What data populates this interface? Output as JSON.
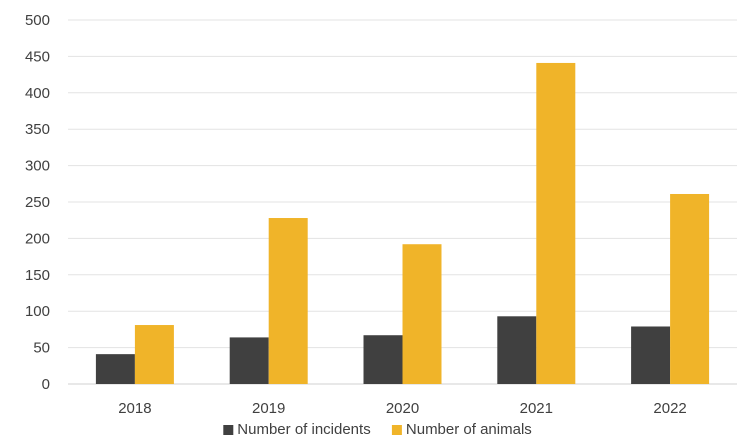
{
  "chart_data": {
    "type": "bar",
    "categories": [
      "2018",
      "2019",
      "2020",
      "2021",
      "2022"
    ],
    "series": [
      {
        "name": "Number of incidents",
        "values": [
          41,
          64,
          67,
          93,
          79
        ],
        "color": "#404040"
      },
      {
        "name": "Number of animals",
        "values": [
          81,
          228,
          192,
          441,
          261
        ],
        "color": "#F0B429"
      }
    ],
    "ylim": [
      0,
      500
    ],
    "yticks": [
      0,
      50,
      100,
      150,
      200,
      250,
      300,
      350,
      400,
      450,
      500
    ],
    "grid": true,
    "legend_position": "bottom",
    "title": "",
    "xlabel": "",
    "ylabel": ""
  },
  "colors": {
    "gridline": "#E3E3E3",
    "axis_line": "#D0D0D0",
    "text": "#404040"
  }
}
